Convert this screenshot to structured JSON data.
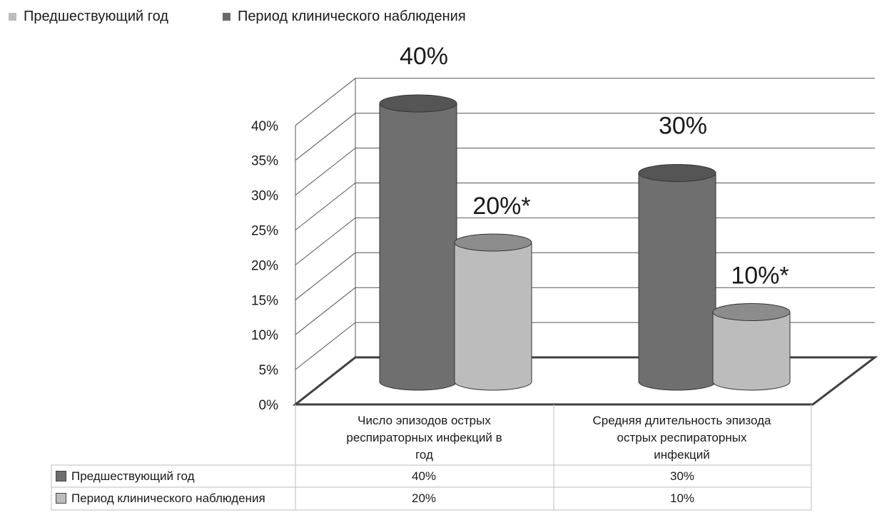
{
  "legend": {
    "prev": {
      "label": "Предшествующий год",
      "color": "#bdbdbd"
    },
    "clinical": {
      "label": "Период клинического наблюдения",
      "color": "#6a6a6a"
    }
  },
  "colors": {
    "prev_series": "#6f6f6f",
    "clinical_series": "#bcbcbc",
    "grid": "#555555"
  },
  "chart_data": {
    "type": "bar",
    "style": "3d-cylinder",
    "categories": [
      "Число эпизодов острых респираторных инфекций в год",
      "Средняя длительность эпизода острых респираторных инфекций"
    ],
    "series": [
      {
        "name": "Предшествующий год",
        "values": [
          40,
          30
        ],
        "labels": [
          "40%",
          "30%"
        ]
      },
      {
        "name": "Период клинического наблюдения",
        "values": [
          20,
          10
        ],
        "labels": [
          "20%*",
          "10%*"
        ]
      }
    ],
    "ylim": [
      0,
      40
    ],
    "yticks": [
      "0%",
      "5%",
      "10%",
      "15%",
      "20%",
      "25%",
      "30%",
      "35%",
      "40%"
    ],
    "grid": true,
    "legend_position": "top-left",
    "data_table": true
  },
  "table": {
    "categories": [
      [
        "Число эпизодов острых",
        "респираторных инфекций в",
        "год"
      ],
      [
        "Средняя длительность эпизода",
        "острых респираторных",
        "инфекций"
      ]
    ],
    "rows": [
      {
        "label": "Предшествующий год",
        "values": [
          "40%",
          "30%"
        ]
      },
      {
        "label": "Период клинического наблюдения",
        "values": [
          "20%",
          "10%"
        ]
      }
    ]
  }
}
